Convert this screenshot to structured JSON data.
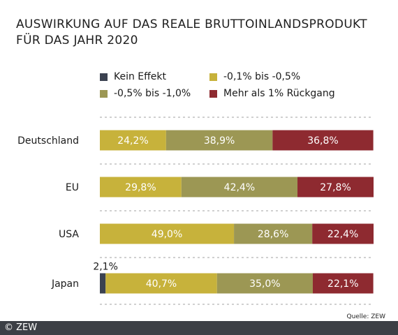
{
  "title_lines": [
    "AUSWIRKUNG AUF DAS REALE BRUTTOINLANDSPRODUKT",
    "FÜR DAS JAHR 2020"
  ],
  "source": "Quelle: ZEW",
  "credit": "© ZEW",
  "legend_placement": "top",
  "colors": {
    "Kein Effekt": "#3b4250",
    "-0,1% bis -0,5%": "#c7b23b",
    "-0,5% bis -1,0%": "#9c9754",
    "Mehr als 1% Rückgang": "#8e2a30",
    "gridline": "#b5b5b5",
    "bar_label": "#ffffff"
  },
  "chart_data": {
    "type": "bar",
    "orientation": "horizontal",
    "stacked": true,
    "xlim": [
      0,
      100
    ],
    "grid": false,
    "categories": [
      "Deutschland",
      "EU",
      "USA",
      "Japan"
    ],
    "series": [
      {
        "name": "Kein Effekt",
        "values": [
          0,
          0,
          0,
          2.1
        ],
        "labels": [
          "",
          "",
          "",
          "2,1%"
        ]
      },
      {
        "name": "-0,1% bis -0,5%",
        "values": [
          24.2,
          29.8,
          49.0,
          40.7
        ],
        "labels": [
          "24,2%",
          "29,8%",
          "49,0%",
          "40,7%"
        ]
      },
      {
        "name": "-0,5% bis -1,0%",
        "values": [
          38.9,
          42.4,
          28.6,
          35.0
        ],
        "labels": [
          "38,9%",
          "42,4%",
          "28,6%",
          "35,0%"
        ]
      },
      {
        "name": "Mehr als 1% Rückgang",
        "values": [
          36.8,
          27.8,
          22.4,
          22.1
        ],
        "labels": [
          "36,8%",
          "27,8%",
          "22,4%",
          "22,1%"
        ]
      }
    ]
  }
}
